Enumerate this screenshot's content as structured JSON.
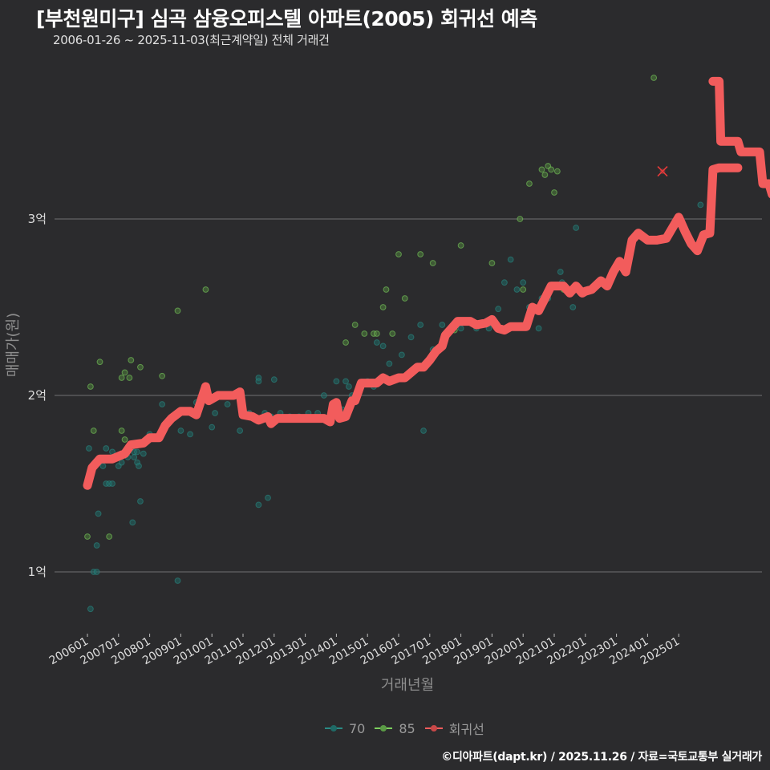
{
  "header": {
    "title": "[부천원미구] 심곡 삼융오피스텔 아파트(2005) 회귀선 예측",
    "subtitle": "2006-01-26 ~ 2025-11-03(최근계약일) 전체 거래건"
  },
  "footer": {
    "credit": "©디아파트(dapt.kr) / 2025.11.26 / 자료=국토교통부 실거래가"
  },
  "legend": [
    {
      "label": "70",
      "color": "#2a8a84"
    },
    {
      "label": "85",
      "color": "#7ccf5e"
    },
    {
      "label": "회귀선",
      "color": "#f25c5c"
    }
  ],
  "chart_data": {
    "type": "scatter",
    "title": "[부천원미구] 심곡 삼융오피스텔 아파트(2005) 회귀선 예측",
    "subtitle": "2006-01-26 ~ 2025-11-03(최근계약일) 전체 거래건",
    "xlabel": "거래년월",
    "ylabel": "매매가(원)",
    "x_ticks": [
      "200601",
      "200701",
      "200801",
      "200901",
      "201001",
      "201101",
      "201201",
      "201301",
      "201401",
      "201501",
      "201601",
      "201701",
      "201801",
      "201901",
      "202001",
      "202101",
      "202201",
      "202301",
      "202401",
      "202501"
    ],
    "y_ticks": [
      {
        "value": 1,
        "label": "1억"
      },
      {
        "value": 2,
        "label": "2억"
      },
      {
        "value": 3,
        "label": "3억"
      }
    ],
    "ylim": [
      0.7,
      3.85
    ],
    "xlim": [
      2005.0,
      2027.8
    ],
    "grid": "horizontal",
    "legend_position": "bottom",
    "series": [
      {
        "name": "70",
        "kind": "scatter",
        "color": "#2a8a84",
        "points": [
          [
            2006.05,
            1.7
          ],
          [
            2006.1,
            0.79
          ],
          [
            2006.2,
            1.0
          ],
          [
            2006.3,
            1.0
          ],
          [
            2006.35,
            1.33
          ],
          [
            2006.3,
            1.15
          ],
          [
            2006.5,
            1.6
          ],
          [
            2006.6,
            1.5
          ],
          [
            2006.7,
            1.5
          ],
          [
            2006.8,
            1.5
          ],
          [
            2006.6,
            1.7
          ],
          [
            2006.8,
            1.68
          ],
          [
            2007.0,
            1.6
          ],
          [
            2007.1,
            1.62
          ],
          [
            2007.3,
            1.65
          ],
          [
            2007.4,
            1.7
          ],
          [
            2007.45,
            1.28
          ],
          [
            2007.5,
            1.68
          ],
          [
            2007.6,
            1.62
          ],
          [
            2007.7,
            1.4
          ],
          [
            2007.65,
            1.6
          ],
          [
            2007.8,
            1.67
          ],
          [
            2007.5,
            1.65
          ],
          [
            2007.6,
            1.68
          ],
          [
            2007.9,
            1.75
          ],
          [
            2008.0,
            1.78
          ],
          [
            2008.4,
            1.95
          ],
          [
            2008.9,
            0.95
          ],
          [
            2009.0,
            1.8
          ],
          [
            2009.3,
            1.78
          ],
          [
            2009.5,
            1.96
          ],
          [
            2009.7,
            2.02
          ],
          [
            2009.8,
            1.99
          ],
          [
            2010.0,
            1.82
          ],
          [
            2010.1,
            1.9
          ],
          [
            2010.5,
            1.95
          ],
          [
            2010.9,
            1.8
          ],
          [
            2011.2,
            1.9
          ],
          [
            2011.5,
            1.38
          ],
          [
            2011.5,
            2.1
          ],
          [
            2011.5,
            2.08
          ],
          [
            2011.7,
            1.9
          ],
          [
            2011.8,
            1.42
          ],
          [
            2011.9,
            1.88
          ],
          [
            2012.0,
            2.09
          ],
          [
            2012.2,
            1.9
          ],
          [
            2012.5,
            1.88
          ],
          [
            2012.8,
            1.88
          ],
          [
            2013.1,
            1.9
          ],
          [
            2013.4,
            1.9
          ],
          [
            2013.6,
            2.0
          ],
          [
            2014.0,
            2.08
          ],
          [
            2014.3,
            2.08
          ],
          [
            2014.4,
            2.05
          ],
          [
            2014.2,
            1.92
          ],
          [
            2014.3,
            1.9
          ],
          [
            2014.5,
            2.0
          ],
          [
            2015.0,
            2.08
          ],
          [
            2015.2,
            2.05
          ],
          [
            2015.3,
            2.3
          ],
          [
            2015.6,
            2.1
          ],
          [
            2015.7,
            2.18
          ],
          [
            2015.5,
            2.28
          ],
          [
            2016.1,
            2.23
          ],
          [
            2016.4,
            2.33
          ],
          [
            2016.7,
            2.4
          ],
          [
            2016.8,
            1.8
          ],
          [
            2017.1,
            2.26
          ],
          [
            2017.4,
            2.4
          ],
          [
            2017.7,
            2.38
          ],
          [
            2018.0,
            2.38
          ],
          [
            2018.5,
            2.38
          ],
          [
            2018.9,
            2.38
          ],
          [
            2019.2,
            2.49
          ],
          [
            2019.4,
            2.64
          ],
          [
            2019.6,
            2.77
          ],
          [
            2019.8,
            2.6
          ],
          [
            2020.0,
            2.64
          ],
          [
            2020.2,
            2.5
          ],
          [
            2020.5,
            2.38
          ],
          [
            2020.6,
            2.55
          ],
          [
            2020.8,
            2.55
          ],
          [
            2021.2,
            2.7
          ],
          [
            2021.25,
            2.64
          ],
          [
            2021.6,
            2.5
          ],
          [
            2021.7,
            2.95
          ],
          [
            2025.7,
            3.08
          ]
        ]
      },
      {
        "name": "85",
        "kind": "scatter",
        "color": "#7ccf5e",
        "points": [
          [
            2006.0,
            1.2
          ],
          [
            2006.1,
            2.05
          ],
          [
            2006.2,
            1.8
          ],
          [
            2006.4,
            2.19
          ],
          [
            2006.7,
            1.2
          ],
          [
            2007.1,
            2.1
          ],
          [
            2007.2,
            2.13
          ],
          [
            2007.35,
            2.1
          ],
          [
            2007.4,
            2.2
          ],
          [
            2007.1,
            1.8
          ],
          [
            2007.2,
            1.75
          ],
          [
            2007.7,
            2.16
          ],
          [
            2008.4,
            2.11
          ],
          [
            2008.9,
            2.48
          ],
          [
            2009.8,
            2.6
          ],
          [
            2014.3,
            2.3
          ],
          [
            2014.6,
            2.4
          ],
          [
            2014.9,
            2.35
          ],
          [
            2015.2,
            2.35
          ],
          [
            2015.3,
            2.35
          ],
          [
            2015.5,
            2.5
          ],
          [
            2015.6,
            2.6
          ],
          [
            2015.8,
            2.35
          ],
          [
            2016.0,
            2.8
          ],
          [
            2016.2,
            2.55
          ],
          [
            2016.7,
            2.8
          ],
          [
            2017.1,
            2.75
          ],
          [
            2017.8,
            2.37
          ],
          [
            2018.0,
            2.85
          ],
          [
            2019.0,
            2.75
          ],
          [
            2019.9,
            3.0
          ],
          [
            2020.0,
            2.6
          ],
          [
            2020.2,
            3.2
          ],
          [
            2020.6,
            3.28
          ],
          [
            2020.7,
            3.25
          ],
          [
            2020.8,
            3.3
          ],
          [
            2020.9,
            3.28
          ],
          [
            2021.0,
            3.15
          ],
          [
            2021.1,
            3.27
          ],
          [
            2021.3,
            2.6
          ],
          [
            2024.2,
            3.8
          ]
        ]
      },
      {
        "name": "회귀선",
        "kind": "line",
        "color": "#f25c5c",
        "points": [
          [
            2006.0,
            1.49
          ],
          [
            2006.15,
            1.59
          ],
          [
            2006.4,
            1.64
          ],
          [
            2006.8,
            1.64
          ],
          [
            2007.2,
            1.67
          ],
          [
            2007.4,
            1.72
          ],
          [
            2007.8,
            1.73
          ],
          [
            2008.0,
            1.76
          ],
          [
            2008.3,
            1.76
          ],
          [
            2008.5,
            1.83
          ],
          [
            2008.7,
            1.87
          ],
          [
            2009.0,
            1.91
          ],
          [
            2009.3,
            1.91
          ],
          [
            2009.5,
            1.89
          ],
          [
            2009.8,
            2.05
          ],
          [
            2009.9,
            1.97
          ],
          [
            2010.2,
            2.0
          ],
          [
            2010.5,
            2.0
          ],
          [
            2010.7,
            2.0
          ],
          [
            2010.9,
            2.02
          ],
          [
            2011.0,
            1.89
          ],
          [
            2011.3,
            1.88
          ],
          [
            2011.5,
            1.86
          ],
          [
            2011.8,
            1.88
          ],
          [
            2011.9,
            1.84
          ],
          [
            2012.1,
            1.87
          ],
          [
            2012.5,
            1.87
          ],
          [
            2013.0,
            1.87
          ],
          [
            2013.2,
            1.87
          ],
          [
            2013.6,
            1.87
          ],
          [
            2013.8,
            1.85
          ],
          [
            2013.9,
            1.95
          ],
          [
            2014.0,
            1.96
          ],
          [
            2014.1,
            1.87
          ],
          [
            2014.3,
            1.88
          ],
          [
            2014.5,
            1.97
          ],
          [
            2014.6,
            1.97
          ],
          [
            2014.8,
            2.07
          ],
          [
            2015.3,
            2.07
          ],
          [
            2015.5,
            2.1
          ],
          [
            2015.7,
            2.08
          ],
          [
            2016.0,
            2.1
          ],
          [
            2016.2,
            2.1
          ],
          [
            2016.4,
            2.13
          ],
          [
            2016.6,
            2.16
          ],
          [
            2016.8,
            2.16
          ],
          [
            2017.0,
            2.2
          ],
          [
            2017.2,
            2.25
          ],
          [
            2017.4,
            2.28
          ],
          [
            2017.5,
            2.34
          ],
          [
            2017.7,
            2.38
          ],
          [
            2017.9,
            2.42
          ],
          [
            2018.3,
            2.42
          ],
          [
            2018.5,
            2.4
          ],
          [
            2018.8,
            2.41
          ],
          [
            2019.0,
            2.43
          ],
          [
            2019.2,
            2.38
          ],
          [
            2019.4,
            2.37
          ],
          [
            2019.6,
            2.39
          ],
          [
            2020.1,
            2.39
          ],
          [
            2020.3,
            2.5
          ],
          [
            2020.5,
            2.48
          ],
          [
            2020.7,
            2.55
          ],
          [
            2020.9,
            2.62
          ],
          [
            2021.3,
            2.62
          ],
          [
            2021.5,
            2.58
          ],
          [
            2021.7,
            2.62
          ],
          [
            2021.9,
            2.58
          ],
          [
            2022.0,
            2.59
          ],
          [
            2022.2,
            2.6
          ],
          [
            2022.5,
            2.65
          ],
          [
            2022.7,
            2.62
          ],
          [
            2022.9,
            2.7
          ],
          [
            2023.1,
            2.76
          ],
          [
            2023.3,
            2.7
          ],
          [
            2023.5,
            2.88
          ],
          [
            2023.7,
            2.92
          ],
          [
            2024.0,
            2.88
          ],
          [
            2024.3,
            2.88
          ],
          [
            2024.6,
            2.89
          ],
          [
            2024.8,
            2.95
          ],
          [
            2025.0,
            3.01
          ],
          [
            2025.2,
            2.93
          ],
          [
            2025.4,
            2.86
          ],
          [
            2025.6,
            2.82
          ],
          [
            2025.8,
            2.91
          ],
          [
            2026.0,
            2.92
          ],
          [
            2026.1,
            3.28
          ],
          [
            2026.3,
            3.29
          ],
          [
            2026.6,
            3.29
          ],
          [
            2026.9,
            3.29
          ]
        ]
      }
    ],
    "markers": [
      {
        "name": "predicted",
        "symbol": "x",
        "color": "#e83a3a",
        "point": [
          2024.5,
          3.27
        ]
      }
    ]
  }
}
